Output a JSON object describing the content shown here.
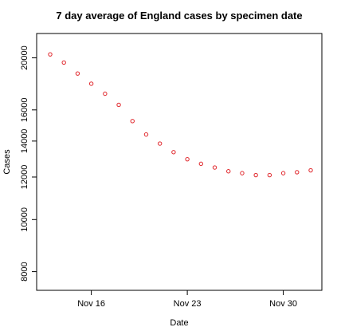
{
  "chart_data": {
    "type": "scatter",
    "title": "7 day average of England cases by specimen date",
    "xlabel": "Date",
    "ylabel": "Cases",
    "x": [
      "2020-11-13",
      "2020-11-14",
      "2020-11-15",
      "2020-11-16",
      "2020-11-17",
      "2020-11-18",
      "2020-11-19",
      "2020-11-20",
      "2020-11-21",
      "2020-11-22",
      "2020-11-23",
      "2020-11-24",
      "2020-11-25",
      "2020-11-26",
      "2020-11-27",
      "2020-11-28",
      "2020-11-29",
      "2020-11-30",
      "2020-12-01",
      "2020-12-02"
    ],
    "series": [
      {
        "values": [
          20300,
          19600,
          18700,
          17900,
          17150,
          16350,
          15250,
          14400,
          13850,
          13350,
          12950,
          12700,
          12500,
          12300,
          12200,
          12100,
          12100,
          12200,
          12250,
          12350
        ]
      }
    ],
    "x_ticks": [
      {
        "date": "2020-11-16",
        "label": "Nov 16"
      },
      {
        "date": "2020-11-23",
        "label": "Nov 23"
      },
      {
        "date": "2020-11-30",
        "label": "Nov 30"
      }
    ],
    "y_ticks": [
      8000,
      10000,
      12000,
      14000,
      16000,
      20000
    ],
    "ylim": [
      7800,
      21600
    ],
    "y_scale": "log",
    "marker": "open-circle",
    "marker_color": "#e0262b",
    "grid": false,
    "legend": "none"
  }
}
